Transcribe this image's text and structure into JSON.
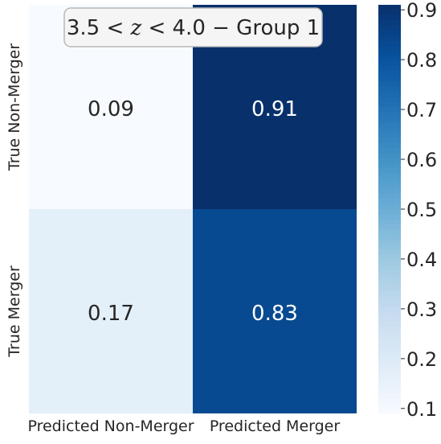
{
  "chart_data": {
    "type": "heatmap",
    "title": "3.5 < z < 4.0 − Group 1",
    "title_parts": {
      "prefix": "3.5 < ",
      "variable": "z",
      "suffix": " < 4.0 − Group 1"
    },
    "x_labels": [
      "Predicted Non-Merger",
      "Predicted Merger"
    ],
    "y_labels": [
      "True Non-Merger",
      "True Merger"
    ],
    "values": [
      [
        0.09,
        0.91
      ],
      [
        0.17,
        0.83
      ]
    ],
    "cell_labels": [
      [
        "0.09",
        "0.91"
      ],
      [
        "0.17",
        "0.83"
      ]
    ],
    "colorbar": {
      "colormap": "Blues",
      "range": [
        0.09,
        0.91
      ],
      "ticks": [
        0.1,
        0.2,
        0.3,
        0.4,
        0.5,
        0.6,
        0.7,
        0.8,
        0.9
      ],
      "tick_labels": [
        "0.1",
        "0.2",
        "0.3",
        "0.4",
        "0.5",
        "0.6",
        "0.7",
        "0.8",
        "0.9"
      ]
    },
    "grid": false,
    "legend": "colorbar-right"
  }
}
